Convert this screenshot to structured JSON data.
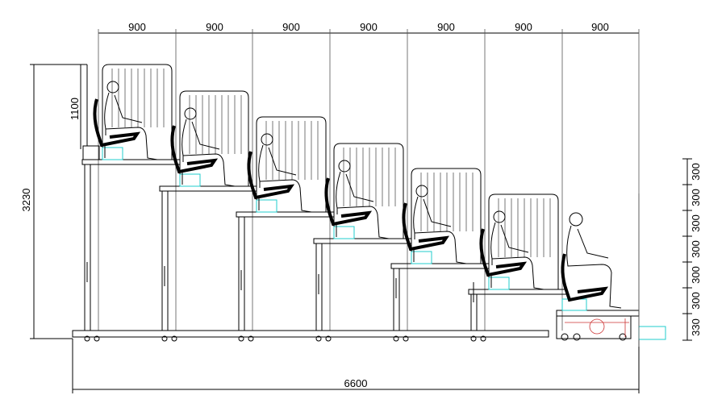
{
  "drawing": {
    "top_dimensions": [
      "900",
      "900",
      "900",
      "900",
      "900",
      "900",
      "900"
    ],
    "overall_width": "6600",
    "overall_height": "3230",
    "railing_height": "1100",
    "step_heights": [
      "300",
      "300",
      "300",
      "300",
      "300",
      "300",
      "330"
    ],
    "tier_count": 7,
    "colors": {
      "line": "#000000",
      "accent": "#22cccc",
      "detail": "#cc3333"
    }
  }
}
